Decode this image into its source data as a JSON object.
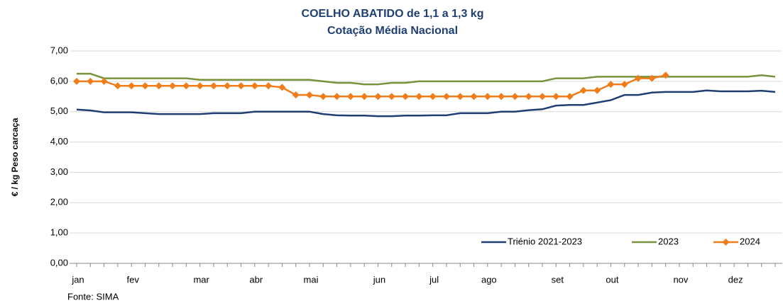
{
  "chart_data": {
    "type": "line",
    "title": "COELHO ABATIDO de 1,1 a 1,3 kg",
    "subtitle": "Cotação Média Nacional",
    "y_label": "€ / kg Peso carcaça",
    "source": "Fonte: SIMA",
    "categories": [
      "jan",
      null,
      null,
      null,
      "fev",
      null,
      null,
      null,
      null,
      "mar",
      null,
      null,
      null,
      "abr",
      null,
      null,
      null,
      "mai",
      null,
      null,
      null,
      null,
      "jun",
      null,
      null,
      null,
      "jul",
      null,
      null,
      null,
      "ago",
      null,
      null,
      null,
      null,
      "set",
      null,
      null,
      null,
      "out",
      null,
      null,
      null,
      null,
      "nov",
      null,
      null,
      null,
      "dez",
      null,
      null,
      null
    ],
    "series": [
      {
        "name": "Triénio 2021-2023",
        "color": "#1f3f73",
        "marker": false,
        "values": [
          5.07,
          5.04,
          4.98,
          4.98,
          4.98,
          4.95,
          4.92,
          4.92,
          4.92,
          4.92,
          4.95,
          4.95,
          4.95,
          5.0,
          5.0,
          5.0,
          5.0,
          5.0,
          4.92,
          4.88,
          4.87,
          4.87,
          4.85,
          4.85,
          4.87,
          4.87,
          4.88,
          4.88,
          4.95,
          4.95,
          4.95,
          5.0,
          5.0,
          5.05,
          5.08,
          5.2,
          5.22,
          5.22,
          5.3,
          5.38,
          5.55,
          5.55,
          5.63,
          5.65,
          5.65,
          5.65,
          5.7,
          5.67,
          5.67,
          5.67,
          5.69,
          5.65
        ]
      },
      {
        "name": "2023",
        "color": "#77933c",
        "marker": false,
        "values": [
          6.25,
          6.25,
          6.1,
          6.1,
          6.1,
          6.1,
          6.1,
          6.1,
          6.1,
          6.05,
          6.05,
          6.05,
          6.05,
          6.05,
          6.05,
          6.05,
          6.05,
          6.05,
          6.0,
          5.95,
          5.95,
          5.9,
          5.9,
          5.95,
          5.95,
          6.0,
          6.0,
          6.0,
          6.0,
          6.0,
          6.0,
          6.0,
          6.0,
          6.0,
          6.0,
          6.1,
          6.1,
          6.1,
          6.15,
          6.15,
          6.15,
          6.15,
          6.15,
          6.15,
          6.15,
          6.15,
          6.15,
          6.15,
          6.15,
          6.15,
          6.2,
          6.15
        ]
      },
      {
        "name": "2024",
        "color": "#f07d1a",
        "marker": true,
        "values": [
          6.0,
          6.0,
          6.0,
          5.85,
          5.85,
          5.85,
          5.85,
          5.85,
          5.85,
          5.85,
          5.85,
          5.85,
          5.85,
          5.85,
          5.85,
          5.8,
          5.55,
          5.55,
          5.5,
          5.5,
          5.5,
          5.5,
          5.5,
          5.5,
          5.5,
          5.5,
          5.5,
          5.5,
          5.5,
          5.5,
          5.5,
          5.5,
          5.5,
          5.5,
          5.5,
          5.5,
          5.5,
          5.7,
          5.7,
          5.9,
          5.9,
          6.1,
          6.1,
          6.2,
          null,
          null,
          null,
          null,
          null,
          null,
          null,
          null
        ]
      }
    ],
    "ylim": [
      0,
      7
    ],
    "yticks": [
      {
        "value": 0,
        "label": "0,00"
      },
      {
        "value": 1,
        "label": "1,00"
      },
      {
        "value": 2,
        "label": "2,00"
      },
      {
        "value": 3,
        "label": "3,00"
      },
      {
        "value": 4,
        "label": "4,00"
      },
      {
        "value": 5,
        "label": "5,00"
      },
      {
        "value": 6,
        "label": "6,00"
      },
      {
        "value": 7,
        "label": "7,00"
      }
    ],
    "grid": true
  }
}
